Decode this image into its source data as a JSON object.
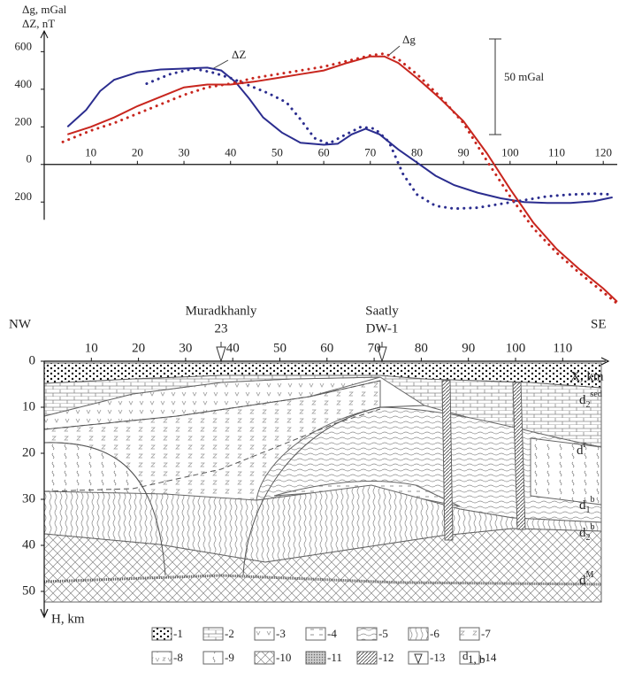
{
  "chart_data": {
    "type": "line",
    "y_label_lines": [
      "Δg, mGal",
      "ΔZ, nT"
    ],
    "xlim": [
      0,
      123
    ],
    "ylim": [
      -750,
      710
    ],
    "xticks": [
      10,
      20,
      30,
      40,
      50,
      60,
      70,
      80,
      90,
      100,
      110,
      120
    ],
    "yticks": [
      600,
      400,
      200,
      0,
      {
        "value": -200,
        "label": "200"
      }
    ],
    "annotations": [
      "ΔZ",
      "Δg",
      "50 mGal"
    ],
    "series": [
      {
        "name": "ΔZ",
        "color": "#2b2d8f",
        "style": "solid",
        "x": [
          5,
          9,
          12,
          15,
          20,
          25,
          30,
          35,
          38,
          41,
          44,
          47,
          51,
          55,
          60,
          63,
          66,
          69,
          72,
          76,
          80,
          84,
          88,
          93,
          98,
          103,
          108,
          113,
          118,
          122
        ],
        "values": [
          200,
          290,
          390,
          450,
          490,
          505,
          510,
          515,
          500,
          440,
          350,
          250,
          170,
          115,
          105,
          110,
          160,
          190,
          160,
          80,
          10,
          -60,
          -110,
          -150,
          -180,
          -200,
          -205,
          -205,
          -195,
          -175
        ]
      },
      {
        "color": "#2b2d8f",
        "style": "dotted",
        "x": [
          22,
          27,
          32,
          36,
          40,
          44,
          48,
          52,
          55,
          58,
          61,
          64,
          68,
          71,
          74,
          77,
          80,
          84,
          88,
          93,
          98,
          103,
          108,
          113,
          118,
          122
        ],
        "values": [
          430,
          480,
          510,
          490,
          460,
          420,
          380,
          330,
          240,
          140,
          110,
          150,
          200,
          190,
          120,
          -50,
          -160,
          -220,
          -235,
          -230,
          -210,
          -190,
          -170,
          -160,
          -155,
          -160
        ]
      },
      {
        "name": "Δg",
        "color": "#c8261e",
        "style": "solid",
        "x": [
          5,
          10,
          15,
          20,
          25,
          30,
          35,
          40,
          45,
          50,
          55,
          60,
          65,
          70,
          73,
          76,
          80,
          85,
          90,
          95,
          100,
          105,
          110,
          115,
          120,
          123
        ],
        "values": [
          160,
          200,
          250,
          310,
          360,
          410,
          425,
          425,
          440,
          460,
          480,
          500,
          540,
          575,
          575,
          540,
          460,
          350,
          230,
          60,
          -130,
          -310,
          -450,
          -560,
          -660,
          -730
        ]
      },
      {
        "color": "#c8261e",
        "style": "dotted",
        "x": [
          4,
          10,
          15,
          20,
          25,
          30,
          35,
          40,
          45,
          50,
          55,
          60,
          65,
          70,
          73,
          76,
          80,
          85,
          90,
          95,
          100,
          105,
          110,
          115,
          120,
          123
        ],
        "values": [
          120,
          180,
          220,
          270,
          320,
          370,
          410,
          430,
          460,
          480,
          500,
          520,
          550,
          580,
          590,
          560,
          480,
          360,
          220,
          20,
          -170,
          -340,
          -470,
          -580,
          -680,
          -740
        ]
      }
    ]
  },
  "section": {
    "directions": [
      "NW",
      "SE"
    ],
    "wells": [
      {
        "name": "Muradkhanly",
        "number": "23"
      },
      {
        "name": "Saatly",
        "number": "DW-1"
      }
    ],
    "xticks": [
      10,
      20,
      30,
      40,
      50,
      60,
      70,
      80,
      90,
      100,
      110
    ],
    "x_label": "X, km",
    "depth_ticks": [
      0,
      10,
      20,
      30,
      40,
      50
    ],
    "depth_label": "H, km",
    "layers": [
      {
        "base": "d",
        "sub": "2",
        "sup": "sed"
      },
      {
        "base": "d",
        "sup": "r"
      },
      {
        "base": "d",
        "sub": "1",
        "sup": "b"
      },
      {
        "base": "d",
        "sub": "2",
        "sup": "b"
      },
      {
        "base": "d",
        "sup": "M"
      }
    ],
    "legend": [
      "-1",
      "-2",
      "-3",
      "-4",
      "-5",
      "-6",
      "-7",
      "-8",
      "-9",
      "-10",
      "-11",
      "-12",
      "-13",
      "-14"
    ],
    "legend_symbol": {
      "base": "d",
      "sub": "1, b"
    }
  }
}
